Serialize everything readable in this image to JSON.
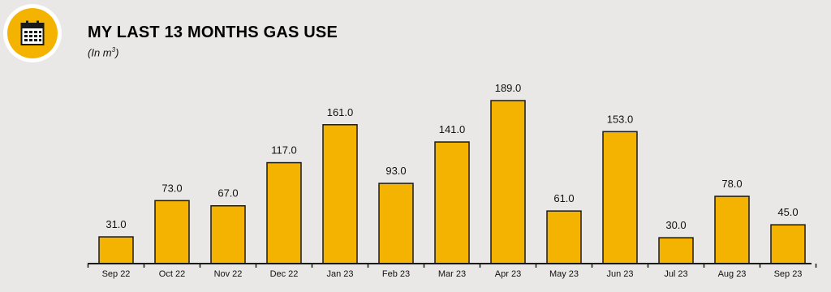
{
  "header": {
    "title": "MY LAST 13 MONTHS GAS USE",
    "subtitle": "(In m",
    "subtitle_sup": "3",
    "subtitle_end": ")",
    "badge_icon": "calendar-icon"
  },
  "colors": {
    "bar_fill": "#f5b301",
    "bar_stroke": "#1a1a1a",
    "background": "#e9e8e6"
  },
  "chart_data": {
    "type": "bar",
    "title": "MY LAST 13 MONTHS GAS USE",
    "ylabel": "",
    "xlabel": "",
    "categories": [
      "Sep 22",
      "Oct 22",
      "Nov 22",
      "Dec 22",
      "Jan 23",
      "Feb 23",
      "Mar 23",
      "Apr 23",
      "May 23",
      "Jun 23",
      "Jul 23",
      "Aug 23",
      "Sep 23"
    ],
    "values": [
      31.0,
      73.0,
      67.0,
      117.0,
      161.0,
      93.0,
      141.0,
      189.0,
      61.0,
      153.0,
      30.0,
      78.0,
      45.0
    ],
    "value_labels": [
      "31.0",
      "73.0",
      "67.0",
      "117.0",
      "161.0",
      "93.0",
      "141.0",
      "189.0",
      "61.0",
      "153.0",
      "30.0",
      "78.0",
      "45.0"
    ],
    "ylim": [
      0,
      189
    ],
    "grid": false,
    "legend": "none"
  }
}
